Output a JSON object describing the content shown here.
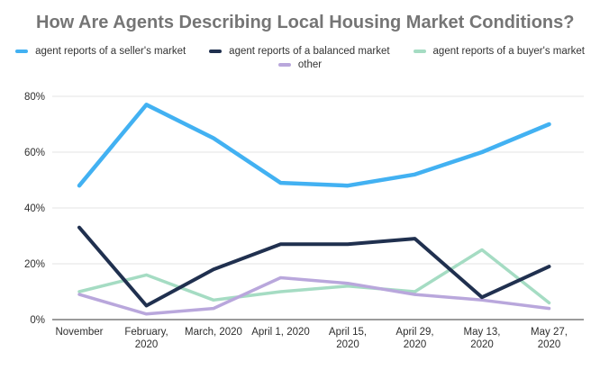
{
  "title": "How Are Agents Describing Local Housing Market Conditions?",
  "colors": {
    "title_text": "#757575",
    "grid_line": "#e3e3e3",
    "axis_line": "#9b9b9b",
    "axis_text": "#2e2e2e",
    "legend_text": "#333333"
  },
  "chart_data": {
    "type": "line",
    "title": "How Are Agents Describing Local Housing Market Conditions?",
    "xlabel": "",
    "ylabel": "",
    "ylim": [
      0,
      80
    ],
    "yticks": [
      0,
      20,
      40,
      60,
      80
    ],
    "ytick_labels": [
      "0%",
      "20%",
      "40%",
      "60%",
      "80%"
    ],
    "grid": true,
    "legend_position": "top",
    "categories": [
      "November",
      "February, 2020",
      "March, 2020",
      "April 1, 2020",
      "April 15, 2020",
      "April 29, 2020",
      "May 13, 2020",
      "May 27, 2020"
    ],
    "category_label_lines": [
      [
        "November"
      ],
      [
        "February,",
        "2020"
      ],
      [
        "March, 2020"
      ],
      [
        "April 1, 2020"
      ],
      [
        "April 15,",
        "2020"
      ],
      [
        "April 29,",
        "2020"
      ],
      [
        "May 13,",
        "2020"
      ],
      [
        "May 27,",
        "2020"
      ]
    ],
    "series": [
      {
        "name": "agent reports of a seller's market",
        "color": "#42b1f2",
        "values": [
          48,
          77,
          65,
          49,
          48,
          52,
          60,
          70
        ]
      },
      {
        "name": "agent reports of a balanced market",
        "color": "#20304f",
        "values": [
          33,
          5,
          18,
          27,
          27,
          29,
          8,
          19
        ]
      },
      {
        "name": "agent reports of a buyer's market",
        "color": "#a5dcc3",
        "values": [
          10,
          16,
          7,
          10,
          12,
          10,
          25,
          6
        ]
      },
      {
        "name": "other",
        "color": "#b9a7dc",
        "values": [
          9,
          2,
          4,
          15,
          13,
          9,
          7,
          4
        ]
      }
    ]
  }
}
